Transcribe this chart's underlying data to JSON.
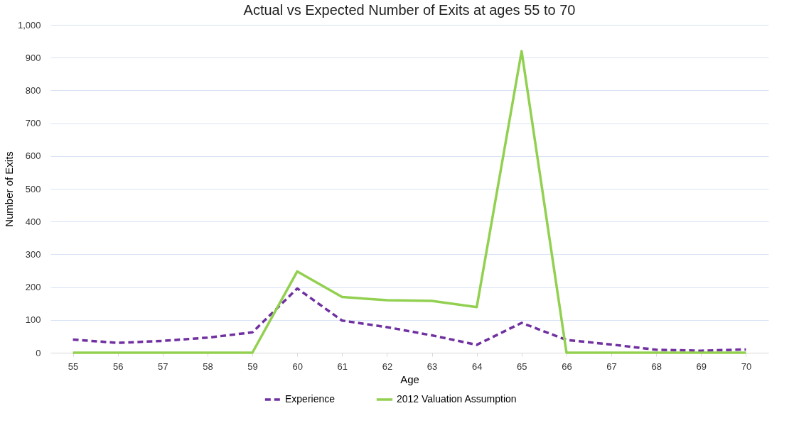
{
  "chart_data": {
    "type": "line",
    "title": "Actual vs Expected Number of Exits at ages 55 to 70",
    "xlabel": "Age",
    "ylabel": "Number of Exits",
    "categories": [
      "55",
      "56",
      "57",
      "58",
      "59",
      "60",
      "61",
      "62",
      "63",
      "64",
      "65",
      "66",
      "67",
      "68",
      "69",
      "70"
    ],
    "series": [
      {
        "name": "Experience",
        "color": "#7030a0",
        "line_style": "dashed",
        "values": [
          40,
          30,
          36,
          46,
          62,
          196,
          98,
          78,
          53,
          24,
          91,
          39,
          25,
          9,
          6,
          10
        ]
      },
      {
        "name": "2012 Valuation Assumption",
        "color": "#92d050",
        "line_style": "solid",
        "values": [
          0,
          0,
          0,
          0,
          0,
          248,
          170,
          160,
          158,
          139,
          920,
          0,
          0,
          0,
          0,
          0
        ]
      }
    ],
    "ylim": [
      0,
      1000
    ],
    "yticks": [
      0,
      {
        "value": 100,
        "label": "100"
      },
      200,
      300,
      400,
      500,
      600,
      700,
      800,
      900,
      {
        "value": 1000,
        "label": "1,000"
      }
    ],
    "grid": "y",
    "legend": "bottom",
    "marker": "none"
  }
}
